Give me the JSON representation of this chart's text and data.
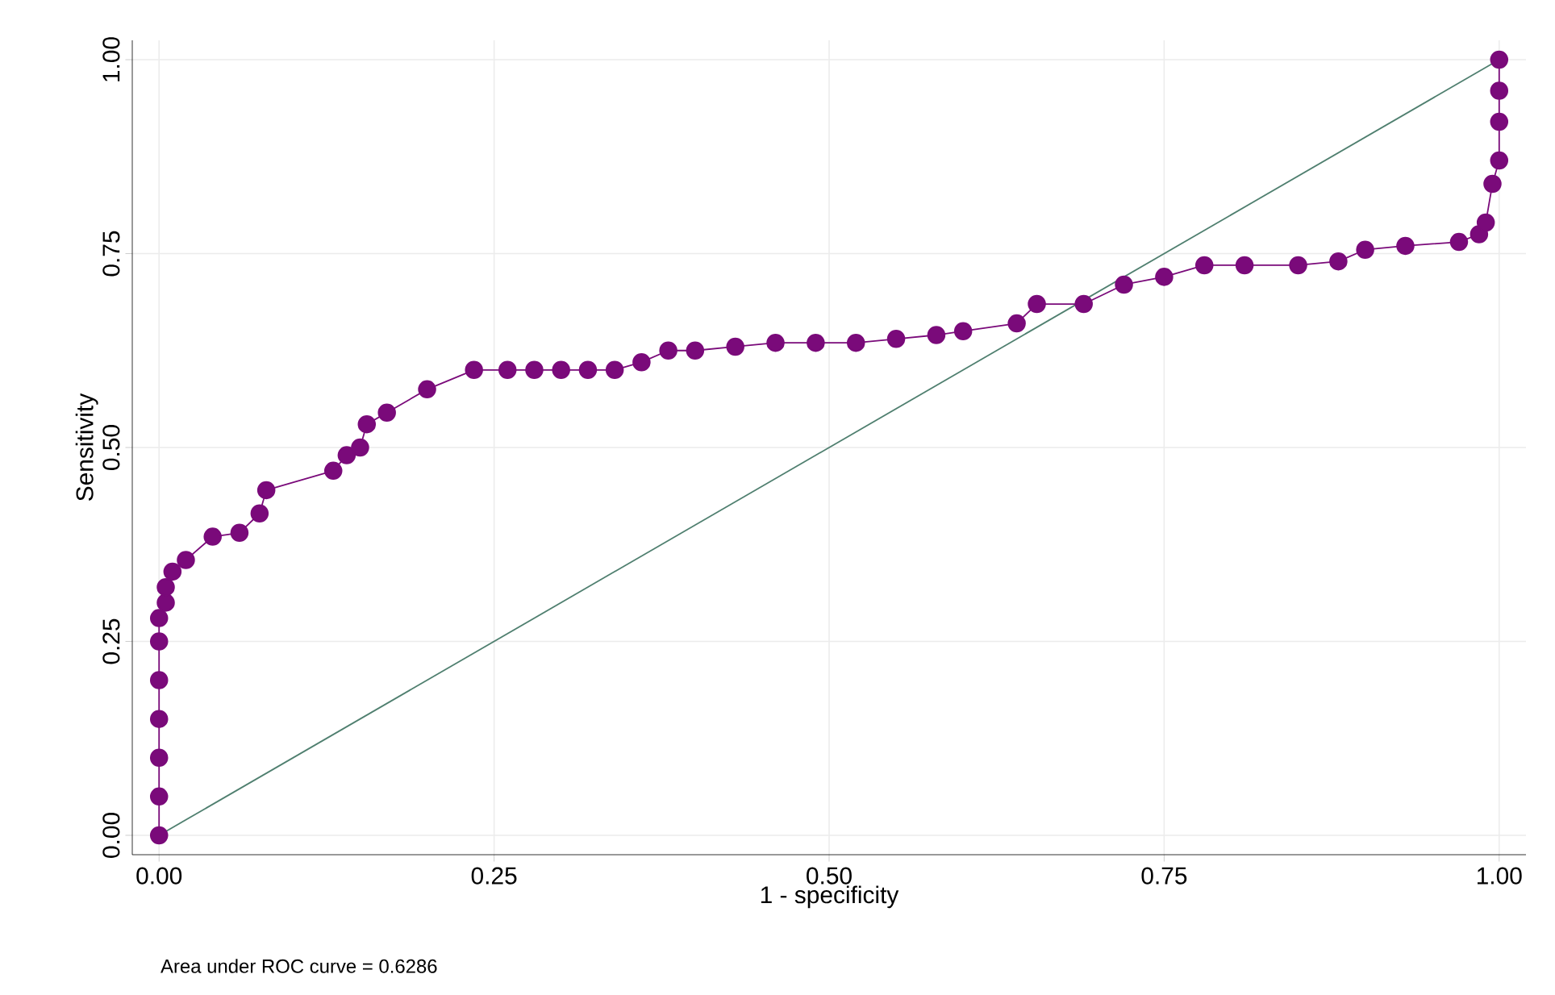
{
  "chart_data": {
    "type": "line",
    "xlabel": "1 - specificity",
    "ylabel": "Sensitivity",
    "annotations": [
      "Area under ROC curve = 0.6286"
    ],
    "xlim": [
      -0.02,
      1.02
    ],
    "ylim": [
      -0.025,
      1.025
    ],
    "xticks": [
      {
        "value": 0,
        "label": "0.00"
      },
      {
        "value": 0.25,
        "label": "0.25"
      },
      {
        "value": 0.5,
        "label": "0.50"
      },
      {
        "value": 0.75,
        "label": "0.75"
      },
      {
        "value": 1,
        "label": "1.00"
      }
    ],
    "yticks": [
      {
        "value": 0,
        "label": "0.00"
      },
      {
        "value": 0.25,
        "label": "0.25"
      },
      {
        "value": 0.5,
        "label": "0.50"
      },
      {
        "value": 0.75,
        "label": "0.75"
      },
      {
        "value": 1,
        "label": "1.00"
      }
    ],
    "grid": true,
    "marker": "circle",
    "line_style": "solid",
    "series": [
      {
        "color": "#7a0a7a",
        "x": [
          0,
          0,
          0,
          0,
          0,
          0,
          0,
          0.005,
          0.005,
          0.01,
          0.02,
          0.04,
          0.06,
          0.075,
          0.08,
          0.13,
          0.14,
          0.15,
          0.155,
          0.17,
          0.2,
          0.235,
          0.26,
          0.28,
          0.3,
          0.32,
          0.34,
          0.36,
          0.38,
          0.4,
          0.43,
          0.46,
          0.49,
          0.52,
          0.55,
          0.58,
          0.6,
          0.64,
          0.655,
          0.69,
          0.72,
          0.75,
          0.78,
          0.81,
          0.85,
          0.88,
          0.9,
          0.93,
          0.97,
          0.985,
          0.99,
          0.995,
          1,
          1,
          1,
          1
        ],
        "values": [
          0,
          0.05,
          0.1,
          0.15,
          0.2,
          0.25,
          0.28,
          0.3,
          0.32,
          0.34,
          0.355,
          0.385,
          0.39,
          0.415,
          0.445,
          0.47,
          0.49,
          0.5,
          0.53,
          0.545,
          0.575,
          0.6,
          0.6,
          0.6,
          0.6,
          0.6,
          0.6,
          0.61,
          0.625,
          0.625,
          0.63,
          0.635,
          0.635,
          0.635,
          0.64,
          0.645,
          0.65,
          0.66,
          0.685,
          0.685,
          0.71,
          0.72,
          0.735,
          0.735,
          0.735,
          0.74,
          0.755,
          0.76,
          0.765,
          0.775,
          0.79,
          0.84,
          0.87,
          0.92,
          0.96,
          1
        ]
      },
      {
        "color": "#4f7f6f",
        "marker": "none",
        "x": [
          0,
          1
        ],
        "values": [
          0,
          1
        ]
      }
    ]
  }
}
